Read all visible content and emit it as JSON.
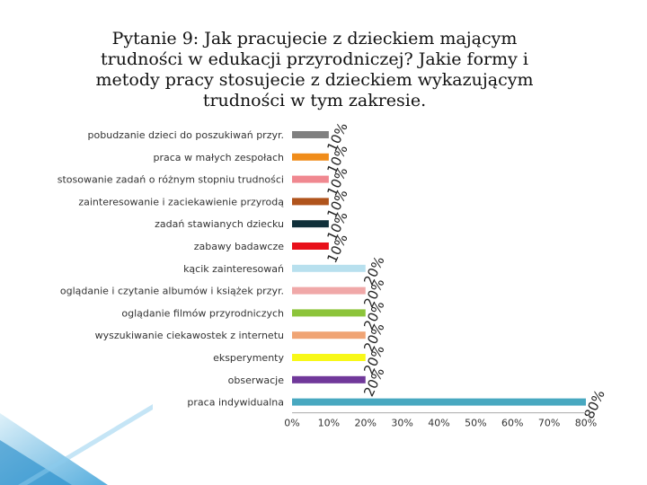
{
  "chart_data": {
    "type": "bar",
    "orientation": "horizontal",
    "title": "Pytanie 9: Jak pracujecie z dzieckiem mającym trudności w edukacji przyrodniczej? Jakie formy i metody pracy stosujecie z dzieckiem wykazującym trudności w tym zakresie.",
    "categories": [
      "pobudzanie dzieci do poszukiwań przyr.",
      "praca w małych zespołach",
      "stosowanie zadań o różnym stopniu trudności",
      "zainteresowanie i zaciekawienie przyrodą",
      "zadań stawianych dziecku",
      "zabawy badawcze",
      "kącik zainteresowań",
      "oglądanie i czytanie albumów i książek przyr.",
      "oglądanie filmów przyrodniczych",
      "wyszukiwanie ciekawostek z internetu",
      "eksperymenty",
      "obserwacje",
      "praca indywidualna"
    ],
    "values": [
      10,
      10,
      10,
      10,
      10,
      10,
      20,
      20,
      20,
      20,
      20,
      20,
      80
    ],
    "data_labels": [
      "10%",
      "10%",
      "10%",
      "10%",
      "10%",
      "10%",
      "20%",
      "20%",
      "20%",
      "20%",
      "20%",
      "20%",
      "80%"
    ],
    "bar_colors": [
      "#808080",
      "#f08c1a",
      "#f08890",
      "#b0541c",
      "#10303a",
      "#e8101a",
      "#b8e0ee",
      "#f0a8a8",
      "#8cc43a",
      "#f0a474",
      "#f8f818",
      "#70389a",
      "#48a8c0"
    ],
    "xlim": [
      0,
      80
    ],
    "x_ticks": [
      0,
      10,
      20,
      30,
      40,
      50,
      60,
      70,
      80
    ],
    "x_tick_labels": [
      "0%",
      "10%",
      "20%",
      "30%",
      "40%",
      "50%",
      "60%",
      "70%",
      "80%"
    ],
    "grid": false,
    "legend": "none"
  }
}
